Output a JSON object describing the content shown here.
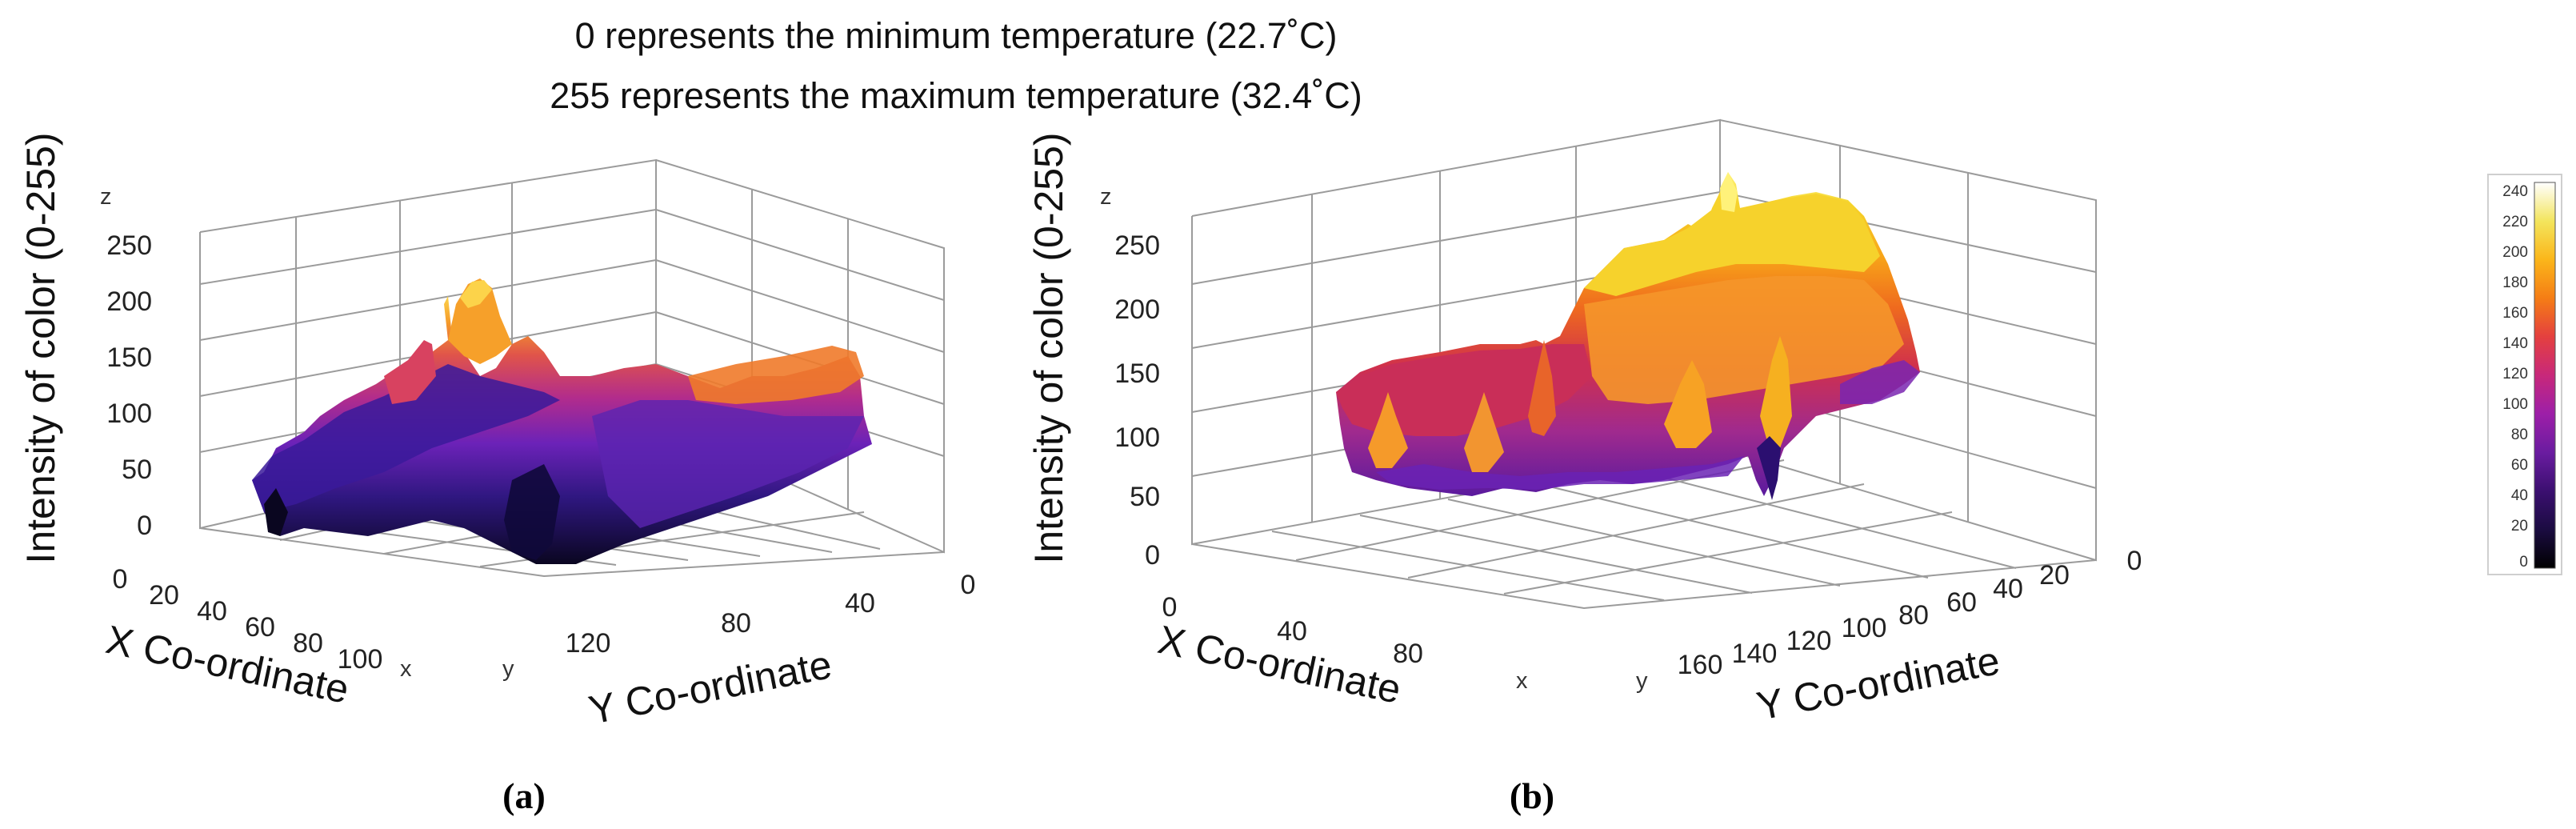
{
  "annotation": {
    "line1": "0 represents the minimum temperature (22.7˚C)",
    "line2": "255 represents the maximum temperature (32.4˚C)"
  },
  "colormap": {
    "name": "inferno-like",
    "stops": [
      "#000000",
      "#1b0c41",
      "#3b0f70",
      "#6a1ca0",
      "#9d1fa8",
      "#c8287a",
      "#e4403f",
      "#f57d15",
      "#fbb61a",
      "#f3e55d",
      "#ffffff"
    ],
    "ticks": [
      "240",
      "220",
      "200",
      "180",
      "160",
      "140",
      "120",
      "100",
      "80",
      "60",
      "40",
      "20",
      "0"
    ]
  },
  "chart_data": [
    {
      "type": "surface3d",
      "label": "(a)",
      "zlabel": "Intensity of color (0-255)",
      "xlabel": "X Co-ordinate",
      "ylabel": "Y Co-ordinate",
      "z_letter": "z",
      "x_letter": "x",
      "y_letter": "y",
      "z_ticks": [
        "250",
        "200",
        "150",
        "100",
        "50",
        "0"
      ],
      "x_ticks": [
        "0",
        "20",
        "40",
        "60",
        "80",
        "100"
      ],
      "y_ticks": [
        "120",
        "80",
        "40",
        "0"
      ],
      "zlim": [
        0,
        255
      ],
      "surface_range": {
        "min": 0,
        "max": 215
      }
    },
    {
      "type": "surface3d",
      "label": "(b)",
      "zlabel": "Intensity of color (0-255)",
      "xlabel": "X Co-ordinate",
      "ylabel": "Y Co-ordinate",
      "z_letter": "z",
      "x_letter": "x",
      "y_letter": "y",
      "z_ticks": [
        "250",
        "200",
        "150",
        "100",
        "50",
        "0"
      ],
      "x_ticks": [
        "0",
        "40",
        "80"
      ],
      "y_ticks": [
        "160",
        "140",
        "120",
        "100",
        "80",
        "60",
        "40",
        "20",
        "0"
      ],
      "zlim": [
        0,
        255
      ],
      "surface_range": {
        "min": 50,
        "max": 250
      }
    }
  ]
}
